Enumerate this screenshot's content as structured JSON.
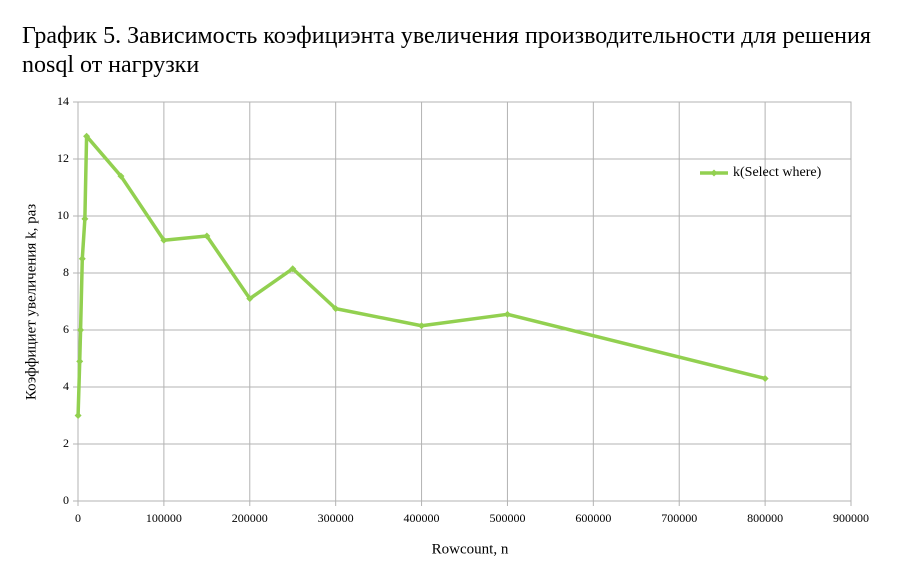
{
  "chart_data": {
    "type": "line",
    "title": "График 5. Зависимость коэфициэнта увеличения производительности для решения nosql от нагрузки",
    "x_label": "Rowcount, n",
    "y_label": "Коэффициет увеличения k, раз",
    "x": [
      100,
      2000,
      3000,
      5000,
      8000,
      10000,
      50000,
      100000,
      150000,
      200000,
      250000,
      300000,
      400000,
      500000,
      800000
    ],
    "series": [
      {
        "name": "k(Select where)",
        "color": "#92d050",
        "values": [
          3.0,
          4.9,
          6.0,
          8.5,
          9.9,
          12.8,
          11.4,
          9.15,
          9.3,
          7.1,
          8.15,
          6.75,
          6.15,
          6.55,
          4.3
        ]
      }
    ],
    "xlim": [
      0,
      900000
    ],
    "xticks": [
      0,
      100000,
      200000,
      300000,
      400000,
      500000,
      600000,
      700000,
      800000,
      900000
    ],
    "ylim": [
      0,
      14
    ],
    "yticks": [
      0,
      2,
      4,
      6,
      8,
      10,
      12,
      14
    ],
    "grid": true,
    "legend_position": "right"
  }
}
